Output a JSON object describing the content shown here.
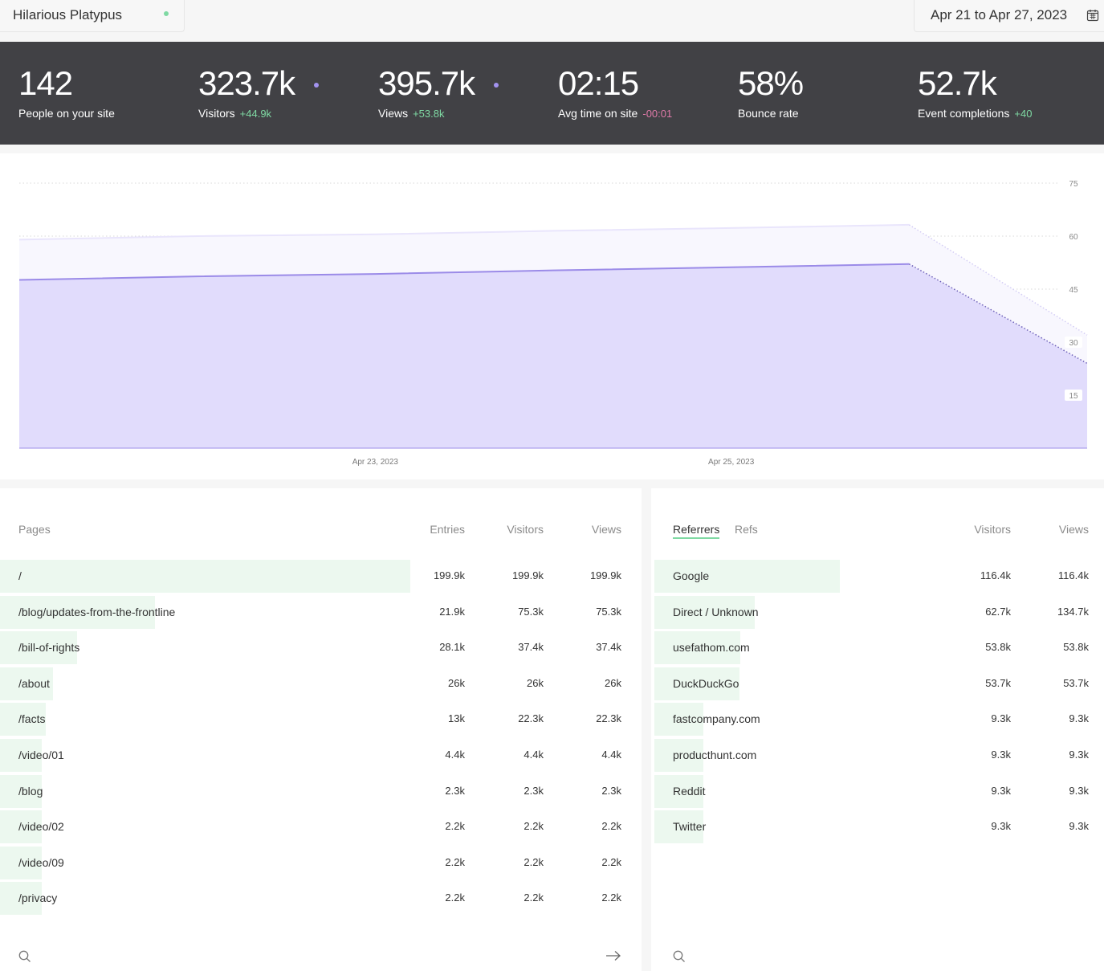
{
  "header": {
    "site_name": "Hilarious Platypus",
    "date_range": "Apr 21 to Apr 27, 2023",
    "icons": {
      "live": "live-dot-icon",
      "calendar": "calendar-icon"
    }
  },
  "stats": [
    {
      "value": "142",
      "label": "People on your site",
      "delta": ""
    },
    {
      "value": "323.7k",
      "label": "Visitors",
      "delta": "+44.9k"
    },
    {
      "value": "395.7k",
      "label": "Views",
      "delta": "+53.8k"
    },
    {
      "value": "02:15",
      "label": "Avg time on site",
      "delta": "-00:01"
    },
    {
      "value": "58%",
      "label": "Bounce rate",
      "delta": ""
    },
    {
      "value": "52.7k",
      "label": "Event completions",
      "delta": "+40"
    }
  ],
  "chart_data": {
    "type": "area",
    "x": [
      "Apr 21, 2023",
      "Apr 22, 2023",
      "Apr 23, 2023",
      "Apr 24, 2023",
      "Apr 25, 2023",
      "Apr 26, 2023",
      "Apr 27, 2023"
    ],
    "x_tick_labels": [
      "Apr 23, 2023",
      "Apr 25, 2023"
    ],
    "series": [
      {
        "values": [
          59,
          60,
          60.5,
          61.5,
          62.3,
          63.2,
          32
        ]
      },
      {
        "values": [
          47.6,
          48.6,
          49.3,
          50.3,
          51.2,
          52.1,
          24
        ]
      }
    ],
    "ylim": [
      0,
      75
    ],
    "yticks": [
      15,
      30,
      45,
      60,
      75
    ],
    "grid": true,
    "colors": {
      "views": "#e9e5fc",
      "visitors_fill": "#e1dcfc",
      "visitors_line": "#9b8be8"
    }
  },
  "pages": {
    "title": "Pages",
    "columns": [
      "Entries",
      "Visitors",
      "Views"
    ],
    "rows": [
      {
        "path": "/",
        "entries": "199.9k",
        "visitors": "199.9k",
        "views": "199.9k",
        "share": 1.0
      },
      {
        "path": "/blog/updates-from-the-frontline",
        "entries": "21.9k",
        "visitors": "75.3k",
        "views": "75.3k",
        "share": 0.377
      },
      {
        "path": "/bill-of-rights",
        "entries": "28.1k",
        "visitors": "37.4k",
        "views": "37.4k",
        "share": 0.187
      },
      {
        "path": "/about",
        "entries": "26k",
        "visitors": "26k",
        "views": "26k",
        "share": 0.13
      },
      {
        "path": "/facts",
        "entries": "13k",
        "visitors": "22.3k",
        "views": "22.3k",
        "share": 0.112
      },
      {
        "path": "/video/01",
        "entries": "4.4k",
        "visitors": "4.4k",
        "views": "4.4k",
        "share": 0.022
      },
      {
        "path": "/blog",
        "entries": "2.3k",
        "visitors": "2.3k",
        "views": "2.3k",
        "share": 0.012
      },
      {
        "path": "/video/02",
        "entries": "2.2k",
        "visitors": "2.2k",
        "views": "2.2k",
        "share": 0.011
      },
      {
        "path": "/video/09",
        "entries": "2.2k",
        "visitors": "2.2k",
        "views": "2.2k",
        "share": 0.011
      },
      {
        "path": "/privacy",
        "entries": "2.2k",
        "visitors": "2.2k",
        "views": "2.2k",
        "share": 0.011
      }
    ]
  },
  "referrers": {
    "tabs": [
      "Referrers",
      "Refs"
    ],
    "columns": [
      "Visitors",
      "Views"
    ],
    "rows": [
      {
        "name": "Google",
        "visitors": "116.4k",
        "views": "116.4k",
        "share": 1.0
      },
      {
        "name": "Direct / Unknown",
        "visitors": "62.7k",
        "views": "134.7k",
        "share": 0.539
      },
      {
        "name": "usefathom.com",
        "visitors": "53.8k",
        "views": "53.8k",
        "share": 0.462
      },
      {
        "name": "DuckDuckGo",
        "visitors": "53.7k",
        "views": "53.7k",
        "share": 0.461
      },
      {
        "name": "fastcompany.com",
        "visitors": "9.3k",
        "views": "9.3k",
        "share": 0.08
      },
      {
        "name": "producthunt.com",
        "visitors": "9.3k",
        "views": "9.3k",
        "share": 0.08
      },
      {
        "name": "Reddit",
        "visitors": "9.3k",
        "views": "9.3k",
        "share": 0.08
      },
      {
        "name": "Twitter",
        "visitors": "9.3k",
        "views": "9.3k",
        "share": 0.08
      }
    ]
  }
}
